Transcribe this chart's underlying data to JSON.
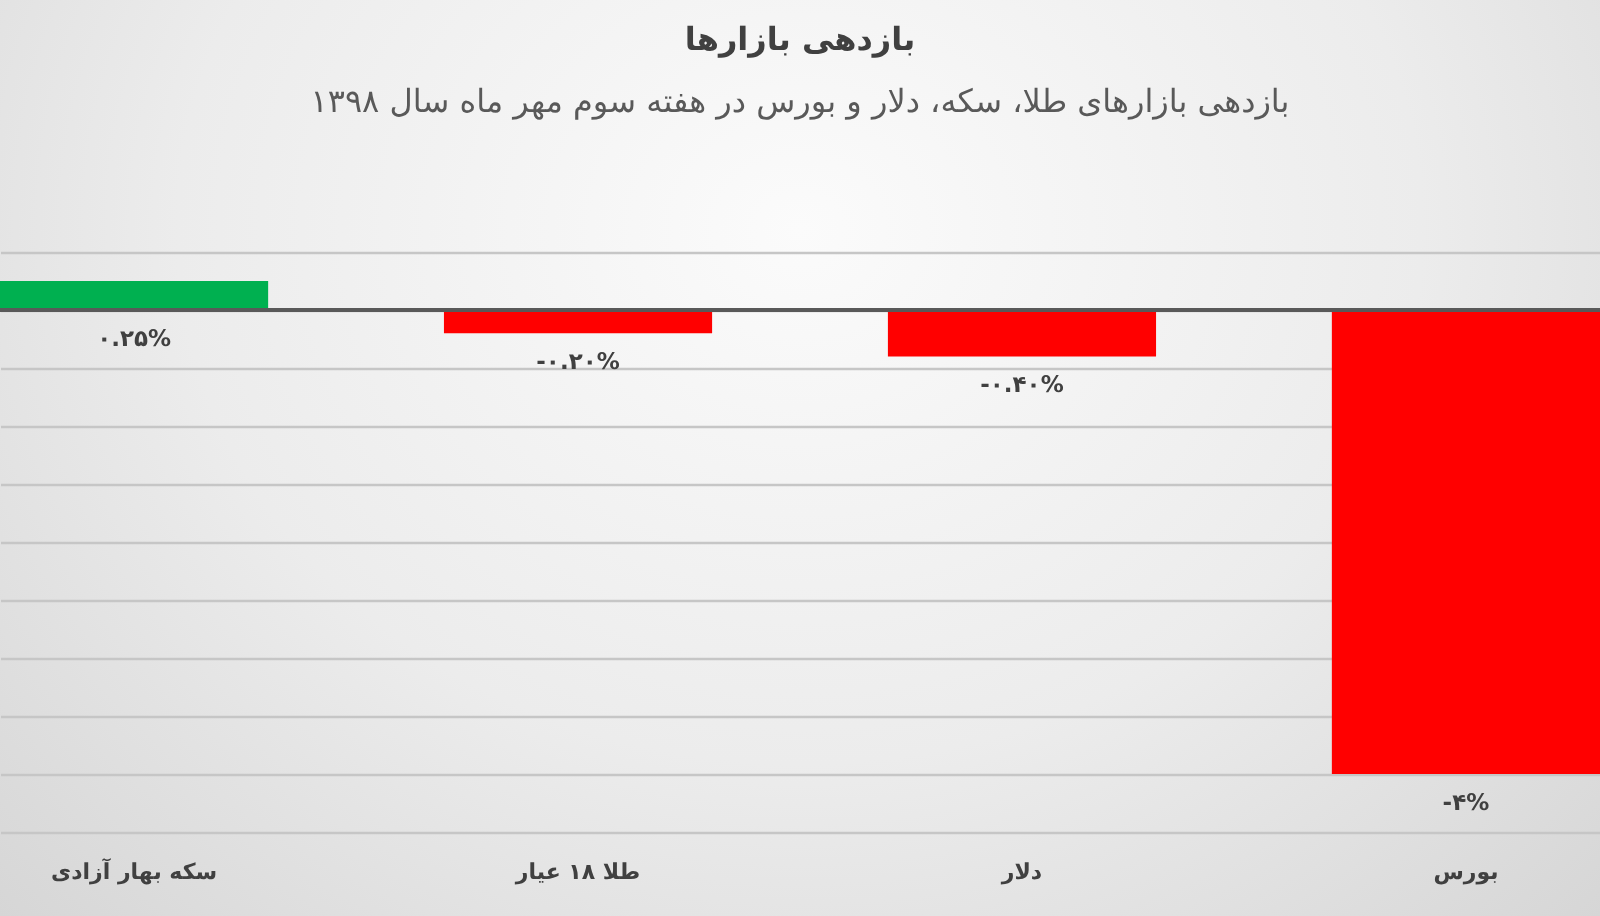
{
  "chart_data": {
    "type": "bar",
    "title": "بازدهی بازارها",
    "subtitle": "بازدهی بازارهای طلا، سکه، دلار و بورس در هفته سوم مهر ماه سال ۱۳۹۸",
    "categories": [
      "سکه بهار آزادی",
      "طلا ۱۸ عیار",
      "دلار",
      "بورس"
    ],
    "values": [
      0.25,
      -0.2,
      -0.4,
      -4
    ],
    "colors": [
      "#00b050",
      "#ff0000",
      "#ff0000",
      "#ff0000"
    ],
    "value_labels": [
      "۰.۲۵%",
      "-۰.۲۰%",
      "-۰.۴۰%",
      "-۴%"
    ],
    "ylim": [
      -4.5,
      0.5
    ],
    "yticks": [
      {
        "value": 0.5,
        "label": null
      },
      {
        "value": 0,
        "label": null
      },
      {
        "value": -0.5,
        "label": null
      },
      {
        "value": -1,
        "label": null
      },
      {
        "value": -1.5,
        "label": null
      },
      {
        "value": -2,
        "label": null
      },
      {
        "value": -2.5,
        "label": null
      },
      {
        "value": -3,
        "label": null
      },
      {
        "value": -3.5,
        "label": null
      },
      {
        "value": -4,
        "label": null
      },
      {
        "value": -4.5,
        "label": null
      }
    ],
    "grid": "y",
    "tick_labels": "x"
  }
}
